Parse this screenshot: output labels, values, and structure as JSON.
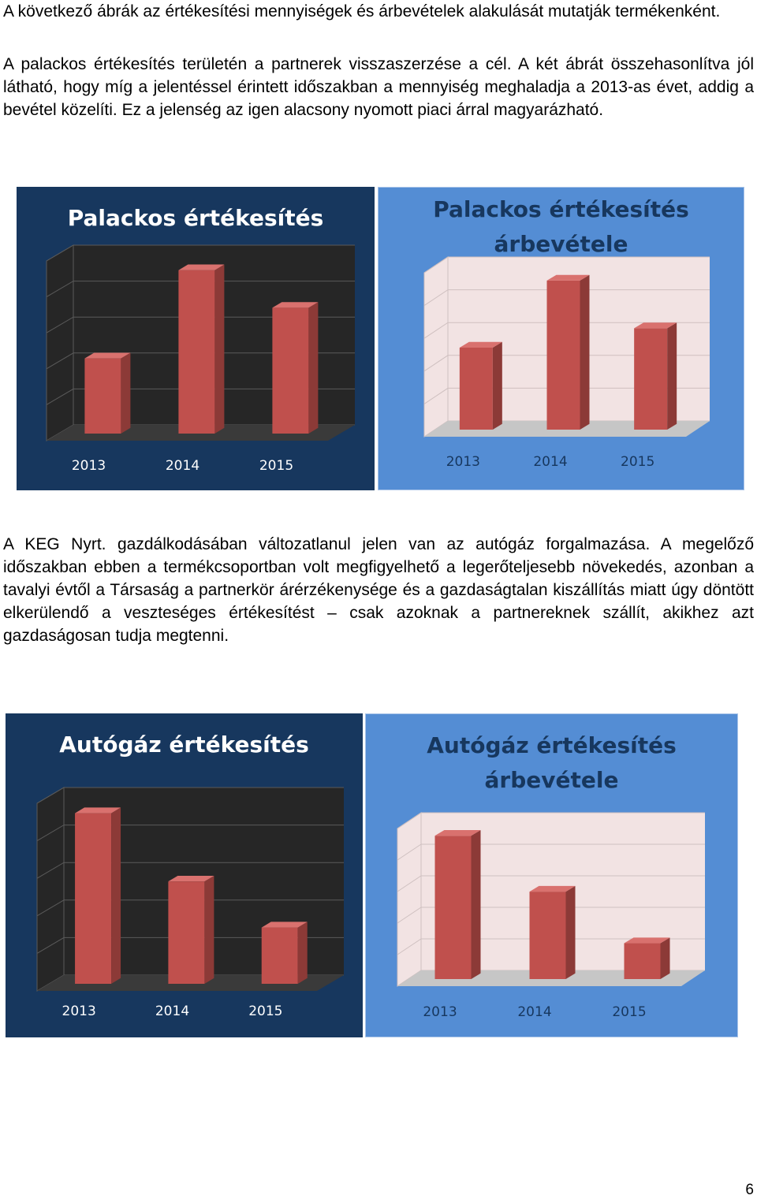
{
  "paragraphs": {
    "p1": "A következő ábrák az értékesítési mennyiségek és árbevételek alakulását mutatják termékenként.",
    "p2": "A palackos értékesítés területén a partnerek visszaszerzése a cél. A két ábrát összehasonlítva jól látható, hogy míg a jelentéssel érintett időszakban a mennyiség meghaladja a 2013-as évet, addig a bevétel közelíti. Ez a jelenség az igen alacsony nyomott piaci árral magyarázható.",
    "p3": "A KEG Nyrt. gazdálkodásában változatlanul jelen van az autógáz forgalmazása. A megelőző időszakban ebben a termékcsoportban volt megfigyelhető a legerőteljesebb növekedés, azonban a tavalyi évtől a Társaság a partnerkör árérzékenysége és a gazdaságtalan kiszállítás miatt úgy döntött elkerülendő a veszteséges értékesítést – csak azoknak a partnereknek szállít, akikhez azt gazdaságosan tudja megtenni."
  },
  "page_number": "6",
  "colors": {
    "dark_bg": "#17375e",
    "light_bg": "#548dd4",
    "bar": "#c0504d"
  },
  "chart_data": [
    {
      "type": "bar",
      "title": "Palackos értékesítés",
      "categories": [
        "2013",
        "2014",
        "2015"
      ],
      "values": [
        0.46,
        1.0,
        0.77
      ],
      "ylim": [
        0,
        1.1
      ],
      "value_scale": "relative, no axis values printed"
    },
    {
      "type": "bar",
      "title": "Palackos értékesítés\nárbevétele",
      "categories": [
        "2013",
        "2014",
        "2015"
      ],
      "values": [
        0.55,
        1.0,
        0.68
      ],
      "ylim": [
        0,
        1.1
      ],
      "value_scale": "relative, no axis values printed"
    },
    {
      "type": "bar",
      "title": "Autógáz értékesítés",
      "categories": [
        "2013",
        "2014",
        "2015"
      ],
      "values": [
        1.0,
        0.6,
        0.33
      ],
      "ylim": [
        0,
        1.1
      ],
      "value_scale": "relative, no axis values printed"
    },
    {
      "type": "bar",
      "title": "Autógáz értékesítés\nárbevétele",
      "categories": [
        "2013",
        "2014",
        "2015"
      ],
      "values": [
        1.0,
        0.61,
        0.25
      ],
      "ylim": [
        0,
        1.1
      ],
      "value_scale": "relative, no axis values printed"
    }
  ]
}
